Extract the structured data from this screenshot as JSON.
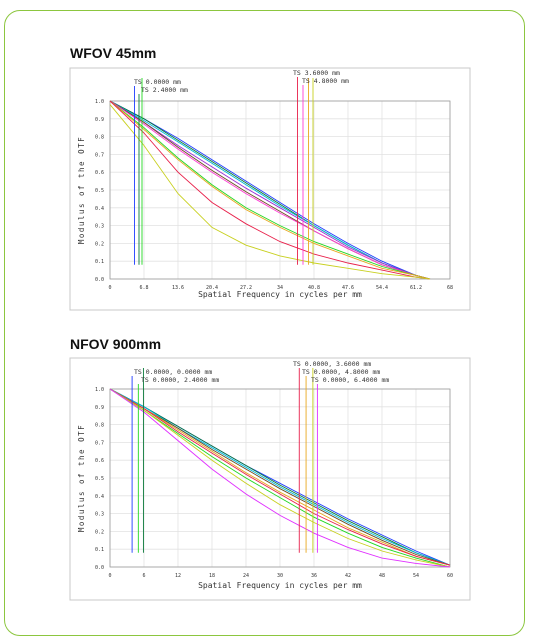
{
  "colors": {
    "card_border": "#8cc63f"
  },
  "charts": [
    {
      "title": "WFOV 45mm"
    },
    {
      "title": "NFOV 900mm"
    }
  ],
  "chart_data": [
    {
      "type": "line",
      "title": "WFOV 45mm",
      "xlabel": "Spatial Frequency in cycles per mm",
      "ylabel": "Modulus of the OTF",
      "xlim": [
        0,
        68
      ],
      "ylim": [
        0,
        1
      ],
      "x_ticks": [
        "0",
        "6.8",
        "13.6",
        "20.4",
        "27.2",
        "34",
        "40.8",
        "47.6",
        "54.4",
        "61.2",
        "68"
      ],
      "y_ticks": [
        "0.0",
        "0.1",
        "0.2",
        "0.3",
        "0.4",
        "0.5",
        "0.6",
        "0.7",
        "0.8",
        "0.9",
        "1.0"
      ],
      "legend_labels": [
        "TS 0.0000 mm",
        "TS 2.4000 mm",
        "TS 3.6000 mm",
        "TS 4.8000 mm"
      ],
      "series": [
        {
          "color": "#1f3cff",
          "x": [
            0,
            6.8,
            13.6,
            20.4,
            27.2,
            34,
            40.8,
            47.6,
            54.4,
            61.2,
            64
          ],
          "y": [
            1,
            0.9,
            0.79,
            0.67,
            0.55,
            0.43,
            0.31,
            0.2,
            0.1,
            0.02,
            0
          ]
        },
        {
          "color": "#0a7a3a",
          "x": [
            0,
            6.8,
            13.6,
            20.4,
            27.2,
            34,
            40.8,
            47.6,
            54.4,
            61.2,
            64
          ],
          "y": [
            1,
            0.9,
            0.78,
            0.66,
            0.54,
            0.42,
            0.3,
            0.19,
            0.09,
            0.02,
            0
          ]
        },
        {
          "color": "#00b8d8",
          "x": [
            0,
            6.8,
            13.6,
            20.4,
            27.2,
            34,
            40.8,
            47.6,
            54.4,
            61.2,
            64
          ],
          "y": [
            1,
            0.89,
            0.77,
            0.65,
            0.53,
            0.41,
            0.3,
            0.19,
            0.09,
            0.02,
            0
          ]
        },
        {
          "color": "#9b2dd6",
          "x": [
            0,
            6.8,
            13.6,
            20.4,
            27.2,
            34,
            40.8,
            47.6,
            54.4,
            61.2,
            64
          ],
          "y": [
            1,
            0.88,
            0.75,
            0.63,
            0.51,
            0.4,
            0.29,
            0.18,
            0.09,
            0.02,
            0
          ]
        },
        {
          "color": "#6b4b22",
          "x": [
            0,
            6.8,
            13.6,
            20.4,
            27.2,
            34,
            40.8,
            47.6,
            54.4,
            61.2,
            64
          ],
          "y": [
            1,
            0.88,
            0.74,
            0.61,
            0.49,
            0.38,
            0.27,
            0.17,
            0.08,
            0.02,
            0
          ]
        },
        {
          "color": "#ff3bd4",
          "x": [
            0,
            6.8,
            13.6,
            20.4,
            27.2,
            34,
            40.8,
            47.6,
            54.4,
            61.2,
            64
          ],
          "y": [
            1,
            0.87,
            0.73,
            0.6,
            0.48,
            0.37,
            0.27,
            0.17,
            0.08,
            0.02,
            0
          ]
        },
        {
          "color": "#22d822",
          "x": [
            0,
            6.8,
            13.6,
            20.4,
            27.2,
            34,
            40.8,
            47.6,
            54.4,
            61.2,
            64
          ],
          "y": [
            1,
            0.85,
            0.68,
            0.53,
            0.4,
            0.3,
            0.21,
            0.14,
            0.07,
            0.02,
            0
          ]
        },
        {
          "color": "#e8a820",
          "x": [
            0,
            6.8,
            13.6,
            20.4,
            27.2,
            34,
            40.8,
            47.6,
            54.4,
            61.2,
            64
          ],
          "y": [
            1,
            0.84,
            0.67,
            0.52,
            0.39,
            0.29,
            0.2,
            0.13,
            0.06,
            0.02,
            0
          ]
        },
        {
          "color": "#e8204a",
          "x": [
            0,
            6.8,
            13.6,
            20.4,
            27.2,
            34,
            40.8,
            47.6,
            54.4,
            61.2,
            64
          ],
          "y": [
            1,
            0.82,
            0.6,
            0.43,
            0.31,
            0.21,
            0.14,
            0.09,
            0.05,
            0.01,
            0
          ]
        },
        {
          "color": "#c8d020",
          "x": [
            0,
            6.8,
            13.6,
            20.4,
            27.2,
            34,
            40.8,
            47.6,
            54.4,
            61.2,
            64
          ],
          "y": [
            0.98,
            0.75,
            0.48,
            0.29,
            0.19,
            0.13,
            0.09,
            0.06,
            0.03,
            0.01,
            0
          ]
        }
      ],
      "markers": [
        {
          "x": 4.9,
          "color": "#1f3cff",
          "label_index": 0
        },
        {
          "x": 5.8,
          "color": "#0a7a3a",
          "label_index": 1
        },
        {
          "x": 6.4,
          "color": "#22d822",
          "label_index": -1
        },
        {
          "x": 37.5,
          "color": "#e8204a",
          "label_index": 2
        },
        {
          "x": 38.6,
          "color": "#ff3bd4",
          "label_index": 3
        },
        {
          "x": 39.7,
          "color": "#e8a820",
          "label_index": -1
        },
        {
          "x": 40.6,
          "color": "#c8d020",
          "label_index": -1
        }
      ]
    },
    {
      "type": "line",
      "title": "NFOV 900mm",
      "xlabel": "Spatial Frequency in cycles per mm",
      "ylabel": "Modulus of the OTF",
      "xlim": [
        0,
        60
      ],
      "ylim": [
        0,
        1
      ],
      "x_ticks": [
        "0",
        "6",
        "12",
        "18",
        "24",
        "30",
        "36",
        "42",
        "48",
        "54",
        "60"
      ],
      "y_ticks": [
        "0.0",
        "0.1",
        "0.2",
        "0.3",
        "0.4",
        "0.5",
        "0.6",
        "0.7",
        "0.8",
        "0.9",
        "1.0"
      ],
      "legend_labels": [
        "TS 0.0000, 0.0000 mm",
        "TS 0.0000, 2.4000 mm",
        "TS 0.0000, 3.6000 mm",
        "TS 0.0000, 4.8000 mm",
        "TS 0.0000, 6.4000 mm"
      ],
      "series": [
        {
          "color": "#1f3cff",
          "x": [
            0,
            6,
            12,
            18,
            24,
            30,
            36,
            42,
            48,
            54,
            60
          ],
          "y": [
            1,
            0.9,
            0.79,
            0.68,
            0.57,
            0.47,
            0.37,
            0.27,
            0.18,
            0.09,
            0.01
          ]
        },
        {
          "color": "#0a7a3a",
          "x": [
            0,
            6,
            12,
            18,
            24,
            30,
            36,
            42,
            48,
            54,
            60
          ],
          "y": [
            1,
            0.9,
            0.79,
            0.68,
            0.57,
            0.46,
            0.36,
            0.26,
            0.17,
            0.08,
            0.01
          ]
        },
        {
          "color": "#00b8d8",
          "x": [
            0,
            6,
            12,
            18,
            24,
            30,
            36,
            42,
            48,
            54,
            60
          ],
          "y": [
            1,
            0.9,
            0.78,
            0.67,
            0.56,
            0.45,
            0.35,
            0.25,
            0.16,
            0.08,
            0.01
          ]
        },
        {
          "color": "#6b4b22",
          "x": [
            0,
            6,
            12,
            18,
            24,
            30,
            36,
            42,
            48,
            54,
            60
          ],
          "y": [
            1,
            0.89,
            0.78,
            0.66,
            0.55,
            0.44,
            0.34,
            0.24,
            0.15,
            0.07,
            0.01
          ]
        },
        {
          "color": "#e8a820",
          "x": [
            0,
            6,
            12,
            18,
            24,
            30,
            36,
            42,
            48,
            54,
            60
          ],
          "y": [
            1,
            0.89,
            0.77,
            0.65,
            0.53,
            0.42,
            0.32,
            0.22,
            0.14,
            0.06,
            0.01
          ]
        },
        {
          "color": "#e8204a",
          "x": [
            0,
            6,
            12,
            18,
            24,
            30,
            36,
            42,
            48,
            54,
            60
          ],
          "y": [
            1,
            0.89,
            0.76,
            0.64,
            0.52,
            0.41,
            0.3,
            0.21,
            0.13,
            0.06,
            0.01
          ]
        },
        {
          "color": "#22d822",
          "x": [
            0,
            6,
            12,
            18,
            24,
            30,
            36,
            42,
            48,
            54,
            60
          ],
          "y": [
            1,
            0.88,
            0.75,
            0.62,
            0.5,
            0.39,
            0.28,
            0.19,
            0.11,
            0.05,
            0
          ]
        },
        {
          "color": "#c8d020",
          "x": [
            0,
            6,
            12,
            18,
            24,
            30,
            36,
            42,
            48,
            54,
            60
          ],
          "y": [
            1,
            0.88,
            0.74,
            0.6,
            0.47,
            0.35,
            0.25,
            0.16,
            0.09,
            0.04,
            0
          ]
        },
        {
          "color": "#e030ff",
          "x": [
            0,
            6,
            12,
            18,
            24,
            30,
            36,
            42,
            48,
            54,
            60
          ],
          "y": [
            1,
            0.87,
            0.71,
            0.55,
            0.41,
            0.29,
            0.19,
            0.11,
            0.05,
            0.02,
            0
          ]
        }
      ],
      "markers": [
        {
          "x": 3.9,
          "color": "#1f3cff",
          "label_index": 0
        },
        {
          "x": 5.0,
          "color": "#22d822",
          "label_index": 1
        },
        {
          "x": 5.9,
          "color": "#0a7a3a",
          "label_index": -1
        },
        {
          "x": 33.4,
          "color": "#e8204a",
          "label_index": 2
        },
        {
          "x": 34.6,
          "color": "#e8a820",
          "label_index": 3
        },
        {
          "x": 35.8,
          "color": "#c8d020",
          "label_index": -1
        },
        {
          "x": 36.6,
          "color": "#e030ff",
          "label_index": 4
        }
      ]
    }
  ]
}
